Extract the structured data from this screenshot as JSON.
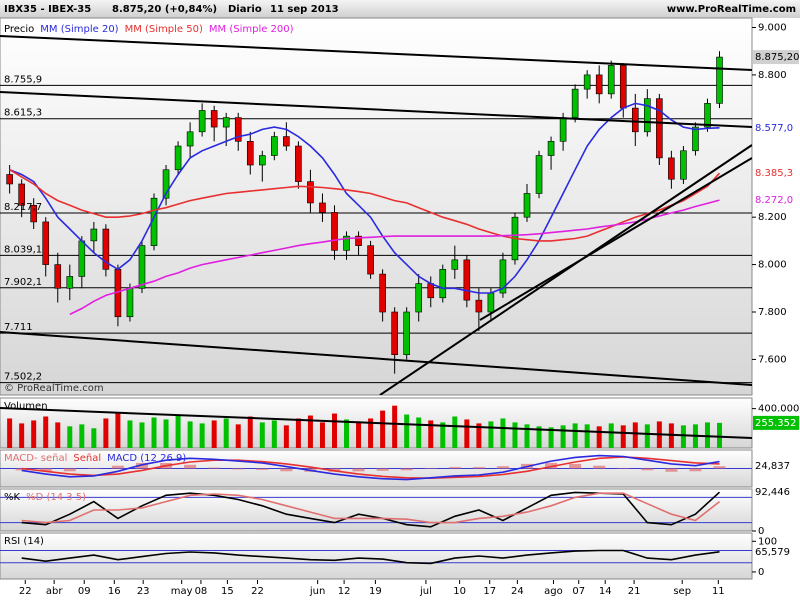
{
  "chart_data": [
    {
      "type": "candlestick",
      "title": "IBX35 - IBEX-35",
      "subtitle": "8.875,20 (+0,84%)",
      "period": "Diario",
      "date": "11 sep 2013",
      "source": "www.ProRealTime.com",
      "watermark": "© ProRealTime.com",
      "price_label": "Precio",
      "last_label": "8.875,20",
      "up_color": "#00c000",
      "down_color": "#e00000",
      "xlim": [
        -0.8,
        61.7
      ],
      "ylim": [
        7450,
        9040
      ],
      "yticks": [
        {
          "value": 9000,
          "label": "9.000"
        },
        {
          "value": 8800,
          "label": "8.800"
        },
        {
          "value": 8200,
          "label": "8.200"
        },
        {
          "value": 8000,
          "label": "8.000"
        },
        {
          "value": 7800,
          "label": "7.800"
        },
        {
          "value": 7600,
          "label": "7.600"
        }
      ],
      "levels": [
        {
          "value": 8755.9,
          "label": "8.755,9"
        },
        {
          "value": 8615.3,
          "label": "8.615,3"
        },
        {
          "value": 8217.7,
          "label": "8.217,7"
        },
        {
          "value": 8039.1,
          "label": "8.039,1"
        },
        {
          "value": 7902.1,
          "label": "7.902,1"
        },
        {
          "value": 7711,
          "label": "7.711"
        },
        {
          "value": 7502.2,
          "label": "7.502,2"
        }
      ],
      "ohlc": [
        [
          8380,
          8420,
          8300,
          8340
        ],
        [
          8340,
          8360,
          8200,
          8250
        ],
        [
          8250,
          8280,
          8150,
          8180
        ],
        [
          8180,
          8200,
          7950,
          8000
        ],
        [
          8000,
          8050,
          7840,
          7900
        ],
        [
          7900,
          8000,
          7850,
          7950
        ],
        [
          7950,
          8120,
          7900,
          8100
        ],
        [
          8100,
          8180,
          8050,
          8150
        ],
        [
          8150,
          8170,
          7950,
          7980
        ],
        [
          7980,
          8000,
          7740,
          7780
        ],
        [
          7780,
          7920,
          7760,
          7900
        ],
        [
          7900,
          8100,
          7880,
          8080
        ],
        [
          8080,
          8300,
          8060,
          8280
        ],
        [
          8280,
          8420,
          8250,
          8400
        ],
        [
          8400,
          8520,
          8380,
          8500
        ],
        [
          8500,
          8600,
          8450,
          8560
        ],
        [
          8560,
          8680,
          8540,
          8650
        ],
        [
          8650,
          8670,
          8520,
          8580
        ],
        [
          8580,
          8640,
          8500,
          8620
        ],
        [
          8620,
          8640,
          8480,
          8520
        ],
        [
          8520,
          8560,
          8380,
          8420
        ],
        [
          8420,
          8480,
          8350,
          8460
        ],
        [
          8460,
          8560,
          8440,
          8540
        ],
        [
          8540,
          8600,
          8480,
          8500
        ],
        [
          8500,
          8520,
          8320,
          8350
        ],
        [
          8350,
          8400,
          8220,
          8260
        ],
        [
          8260,
          8300,
          8180,
          8220
        ],
        [
          8220,
          8250,
          8020,
          8060
        ],
        [
          8060,
          8140,
          8020,
          8120
        ],
        [
          8120,
          8140,
          8040,
          8080
        ],
        [
          8080,
          8100,
          7940,
          7960
        ],
        [
          7960,
          7980,
          7760,
          7800
        ],
        [
          7800,
          7820,
          7540,
          7620
        ],
        [
          7620,
          7820,
          7600,
          7800
        ],
        [
          7800,
          7960,
          7760,
          7920
        ],
        [
          7920,
          7950,
          7820,
          7860
        ],
        [
          7860,
          8000,
          7840,
          7980
        ],
        [
          7980,
          8080,
          7940,
          8020
        ],
        [
          8020,
          8040,
          7820,
          7850
        ],
        [
          7850,
          7900,
          7720,
          7800
        ],
        [
          7800,
          7900,
          7760,
          7880
        ],
        [
          7880,
          8050,
          7860,
          8020
        ],
        [
          8020,
          8220,
          8000,
          8200
        ],
        [
          8200,
          8340,
          8180,
          8300
        ],
        [
          8300,
          8480,
          8280,
          8460
        ],
        [
          8460,
          8540,
          8400,
          8520
        ],
        [
          8520,
          8640,
          8480,
          8620
        ],
        [
          8620,
          8760,
          8600,
          8740
        ],
        [
          8740,
          8820,
          8700,
          8800
        ],
        [
          8800,
          8840,
          8680,
          8720
        ],
        [
          8720,
          8860,
          8700,
          8840
        ],
        [
          8840,
          8850,
          8620,
          8660
        ],
        [
          8660,
          8720,
          8500,
          8560
        ],
        [
          8560,
          8740,
          8540,
          8700
        ],
        [
          8700,
          8720,
          8420,
          8450
        ],
        [
          8450,
          8480,
          8320,
          8360
        ],
        [
          8360,
          8500,
          8340,
          8480
        ],
        [
          8480,
          8600,
          8460,
          8580
        ],
        [
          8580,
          8700,
          8560,
          8680
        ],
        [
          8680,
          8900,
          8660,
          8875.2
        ]
      ],
      "series": [
        {
          "name": "MM (Simple 20)",
          "color": "#2a2ae0",
          "last_label": "8.577,0",
          "values": [
            8400,
            8380,
            8350,
            8280,
            8200,
            8150,
            8100,
            8050,
            8010,
            7980,
            8020,
            8100,
            8200,
            8300,
            8380,
            8450,
            8480,
            8500,
            8520,
            8540,
            8550,
            8570,
            8580,
            8570,
            8540,
            8500,
            8450,
            8380,
            8300,
            8250,
            8200,
            8120,
            8050,
            8000,
            7950,
            7920,
            7900,
            7900,
            7890,
            7880,
            7880,
            7900,
            7950,
            8020,
            8100,
            8200,
            8300,
            8400,
            8500,
            8570,
            8620,
            8660,
            8680,
            8670,
            8650,
            8610,
            8580,
            8570,
            8575,
            8577
          ]
        },
        {
          "name": "MM (Simple 50)",
          "color": "#e83030",
          "last_label": "8.385,3",
          "values": [
            8400,
            8370,
            8340,
            8300,
            8270,
            8250,
            8230,
            8215,
            8200,
            8200,
            8205,
            8215,
            8230,
            8240,
            8255,
            8270,
            8280,
            8290,
            8300,
            8305,
            8310,
            8315,
            8320,
            8325,
            8330,
            8328,
            8325,
            8320,
            8315,
            8308,
            8300,
            8285,
            8270,
            8260,
            8240,
            8220,
            8200,
            8185,
            8170,
            8150,
            8135,
            8120,
            8110,
            8105,
            8100,
            8100,
            8105,
            8110,
            8120,
            8140,
            8160,
            8180,
            8200,
            8215,
            8230,
            8250,
            8270,
            8300,
            8330,
            8385.3
          ]
        },
        {
          "name": "MM (Simple 200)",
          "color": "#e020e0",
          "last_label": "8.272,0",
          "values": [
            null,
            null,
            null,
            null,
            null,
            7790,
            7815,
            7845,
            7870,
            7885,
            7900,
            7915,
            7930,
            7950,
            7965,
            7985,
            8000,
            8010,
            8020,
            8030,
            8040,
            8050,
            8060,
            8070,
            8080,
            8088,
            8095,
            8103,
            8110,
            8113,
            8115,
            8118,
            8120,
            8120,
            8120,
            8120,
            8120,
            8120,
            8120,
            8120,
            8120,
            8122,
            8124,
            8126,
            8130,
            8135,
            8140,
            8145,
            8150,
            8158,
            8165,
            8172,
            8180,
            8192,
            8205,
            8218,
            8230,
            8245,
            8258,
            8272
          ]
        }
      ]
    },
    {
      "type": "bar",
      "title": "Volumen",
      "last_label": "255.352",
      "color": "#00c000",
      "xlim": [
        -0.8,
        61.7
      ],
      "ylim": [
        0,
        508000
      ],
      "yticks": [
        {
          "value": 400000,
          "label": "400.000"
        }
      ],
      "values": [
        300000,
        250000,
        280000,
        320000,
        260000,
        220000,
        240000,
        200000,
        300000,
        350000,
        280000,
        260000,
        310000,
        290000,
        330000,
        270000,
        250000,
        280000,
        300000,
        240000,
        320000,
        260000,
        280000,
        230000,
        300000,
        330000,
        260000,
        350000,
        290000,
        270000,
        300000,
        380000,
        430000,
        340000,
        310000,
        280000,
        260000,
        320000,
        290000,
        250000,
        270000,
        300000,
        260000,
        240000,
        220000,
        210000,
        230000,
        250000,
        240000,
        220000,
        250000,
        230000,
        260000,
        240000,
        270000,
        250000,
        230000,
        240000,
        260000,
        255352
      ]
    },
    {
      "type": "line",
      "xlim": [
        -0.8,
        61.7
      ],
      "ylim": [
        -200,
        200
      ],
      "levels": [
        0
      ],
      "x": [
        1,
        3,
        5,
        7,
        9,
        11,
        13,
        15,
        17,
        19,
        21,
        23,
        25,
        27,
        29,
        31,
        33,
        35,
        37,
        39,
        41,
        43,
        45,
        47,
        49,
        51,
        53,
        55,
        57,
        59
      ],
      "series": [
        {
          "name": "MACD- señal",
          "type": "bar",
          "color": "#e07070",
          "last_label": "24,837",
          "values": [
            -20,
            -30,
            -30,
            -5,
            30,
            60,
            60,
            40,
            10,
            -10,
            -15,
            -30,
            -35,
            -35,
            -30,
            -25,
            -20,
            5,
            15,
            15,
            25,
            50,
            60,
            50,
            30,
            5,
            -20,
            -35,
            -30,
            24.837
          ]
        },
        {
          "name": "Señal",
          "color": "#e83030",
          "values": [
            0,
            -30,
            -60,
            -75,
            -60,
            -20,
            30,
            70,
            90,
            90,
            75,
            50,
            15,
            -25,
            -60,
            -85,
            -100,
            -105,
            -95,
            -85,
            -65,
            -30,
            20,
            70,
            110,
            125,
            110,
            85,
            60,
            50
          ]
        },
        {
          "name": "MACD (12 26 9)",
          "color": "#2a2ae0",
          "values": [
            -20,
            -60,
            -90,
            -80,
            -30,
            40,
            90,
            110,
            100,
            80,
            60,
            20,
            -20,
            -60,
            -90,
            -110,
            -120,
            -100,
            -80,
            -70,
            -40,
            20,
            80,
            120,
            140,
            130,
            90,
            50,
            30,
            74.837
          ]
        }
      ]
    },
    {
      "type": "line",
      "xlim": [
        -0.8,
        61.7
      ],
      "ylim": [
        0,
        100
      ],
      "levels": [
        80,
        20
      ],
      "yticks": [
        0
      ],
      "x": [
        1,
        3,
        5,
        7,
        9,
        11,
        13,
        15,
        17,
        19,
        21,
        23,
        25,
        27,
        29,
        31,
        33,
        35,
        37,
        39,
        41,
        43,
        45,
        47,
        49,
        51,
        53,
        55,
        57,
        59
      ],
      "series": [
        {
          "name": "%K",
          "color": "#000000",
          "last_label": "92,446",
          "values": [
            20,
            15,
            40,
            70,
            30,
            60,
            85,
            90,
            85,
            75,
            60,
            40,
            30,
            20,
            40,
            30,
            15,
            10,
            35,
            50,
            25,
            55,
            85,
            92,
            90,
            88,
            20,
            15,
            40,
            92.446
          ]
        },
        {
          "name": "%D (14 3 5)",
          "color": "#e07070",
          "values": [
            25,
            20,
            25,
            50,
            50,
            55,
            70,
            85,
            88,
            85,
            75,
            60,
            45,
            30,
            30,
            30,
            28,
            20,
            20,
            30,
            35,
            45,
            60,
            80,
            90,
            90,
            65,
            40,
            25,
            70
          ]
        }
      ]
    },
    {
      "type": "line",
      "title": "RSI (14)",
      "xlim": [
        -0.8,
        61.7
      ],
      "ylim": [
        -23,
        127
      ],
      "levels": [
        70,
        30
      ],
      "yticks": [
        100,
        0
      ],
      "x": [
        1,
        3,
        5,
        7,
        9,
        11,
        13,
        15,
        17,
        19,
        21,
        23,
        25,
        27,
        29,
        31,
        33,
        35,
        37,
        39,
        41,
        43,
        45,
        47,
        49,
        51,
        53,
        55,
        57,
        59
      ],
      "series": [
        {
          "name": "RSI",
          "color": "#000000",
          "last_label": "65,579",
          "values": [
            45,
            35,
            45,
            55,
            40,
            50,
            60,
            65,
            62,
            55,
            50,
            45,
            40,
            38,
            45,
            42,
            30,
            28,
            45,
            52,
            45,
            55,
            62,
            68,
            70,
            70,
            45,
            40,
            55,
            65.579
          ]
        }
      ],
      "xticks": [
        {
          "value": 1.3,
          "label": "22"
        },
        {
          "value": 3.7,
          "label": "abr"
        },
        {
          "value": 6.2,
          "label": "09"
        },
        {
          "value": 8.7,
          "label": "16"
        },
        {
          "value": 11.1,
          "label": "23"
        },
        {
          "value": 14.3,
          "label": "may"
        },
        {
          "value": 15.9,
          "label": "08"
        },
        {
          "value": 18.1,
          "label": "15"
        },
        {
          "value": 20.6,
          "label": "22"
        },
        {
          "value": 25.6,
          "label": "jun"
        },
        {
          "value": 27.8,
          "label": "12"
        },
        {
          "value": 30.4,
          "label": "19"
        },
        {
          "value": 34.6,
          "label": "jul"
        },
        {
          "value": 37.4,
          "label": "10"
        },
        {
          "value": 39.9,
          "label": "17"
        },
        {
          "value": 42.2,
          "label": "24"
        },
        {
          "value": 45.2,
          "label": "ago"
        },
        {
          "value": 47.3,
          "label": "07"
        },
        {
          "value": 49.5,
          "label": "14"
        },
        {
          "value": 51.9,
          "label": "21"
        },
        {
          "value": 55.9,
          "label": "sep"
        },
        {
          "value": 58.9,
          "label": "11"
        }
      ]
    }
  ]
}
